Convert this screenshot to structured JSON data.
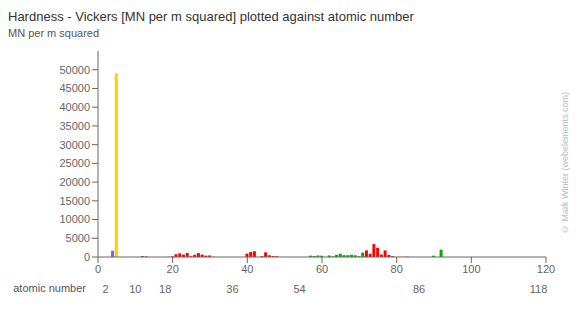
{
  "chart_data": {
    "type": "bar",
    "title": "Hardness  -  Vickers [MN per m squared] plotted against atomic number",
    "ylabel": "MN per m squared",
    "xlabel": "atomic number",
    "x": [
      3,
      4,
      5,
      12,
      13,
      19,
      20,
      21,
      22,
      23,
      24,
      25,
      26,
      27,
      28,
      29,
      30,
      31,
      40,
      41,
      42,
      44,
      45,
      46,
      47,
      48,
      49,
      57,
      58,
      59,
      60,
      62,
      63,
      64,
      65,
      66,
      67,
      68,
      69,
      70,
      71,
      72,
      73,
      74,
      75,
      76,
      77,
      78,
      79,
      81,
      82,
      83,
      90,
      92
    ],
    "values": [
      5,
      1670,
      49000,
      260,
      167,
      35,
      167,
      750,
      970,
      628,
      1060,
      196,
      608,
      1043,
      638,
      369,
      412,
      56,
      903,
      1320,
      1530,
      220,
      1246,
      461,
      251,
      203,
      9,
      363,
      270,
      400,
      343,
      412,
      167,
      570,
      863,
      500,
      481,
      589,
      471,
      206,
      1160,
      1760,
      873,
      3430,
      2450,
      670,
      1760,
      549,
      216,
      37,
      38,
      94,
      350,
      1960
    ],
    "colors": [
      "#ff0000",
      "#6666ff",
      "#ffcc00",
      "#ff0000",
      "#ff0000",
      "#ff0000",
      "#ff0000",
      "#ff0000",
      "#ff0000",
      "#ff0000",
      "#ff0000",
      "#ff0000",
      "#ff0000",
      "#ff0000",
      "#ff0000",
      "#ff0000",
      "#ff0000",
      "#ff0000",
      "#ff0000",
      "#ff0000",
      "#ff0000",
      "#ff0000",
      "#ff0000",
      "#ff0000",
      "#ff0000",
      "#ff0000",
      "#ff0000",
      "#00aa00",
      "#00aa00",
      "#00aa00",
      "#00aa00",
      "#00aa00",
      "#00aa00",
      "#00aa00",
      "#00aa00",
      "#00aa00",
      "#00aa00",
      "#00aa00",
      "#00aa00",
      "#00aa00",
      "#00aa00",
      "#ff0000",
      "#ff0000",
      "#ff0000",
      "#ff0000",
      "#ff0000",
      "#ff0000",
      "#ff0000",
      "#ff0000",
      "#ff0000",
      "#ff0000",
      "#ff0000",
      "#00aa00",
      "#00aa00"
    ],
    "xlim": [
      0,
      120
    ],
    "xticks": [
      0,
      20,
      40,
      60,
      80,
      100,
      120
    ],
    "ylim": [
      0,
      55000
    ],
    "yticks": [
      0,
      5000,
      10000,
      15000,
      20000,
      25000,
      30000,
      35000,
      40000,
      45000,
      50000
    ],
    "grid": false,
    "annotations": [
      {
        "x": 2,
        "text": "2"
      },
      {
        "x": 10,
        "text": "10"
      },
      {
        "x": 18,
        "text": "18"
      },
      {
        "x": 36,
        "text": "36"
      },
      {
        "x": 54,
        "text": "54"
      },
      {
        "x": 86,
        "text": "86"
      },
      {
        "x": 118,
        "text": "118"
      },
      {
        "text": "© Mark Winter (webelements.com)"
      }
    ]
  }
}
